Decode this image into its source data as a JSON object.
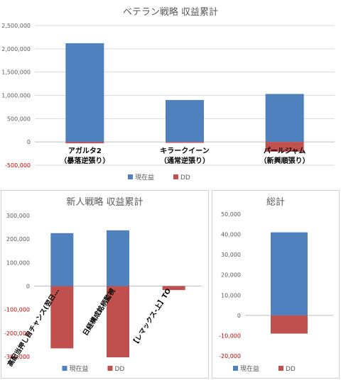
{
  "colors": {
    "profit": "#4e81bd",
    "dd": "#c0504d",
    "negative_tick": "#c00000"
  },
  "legend": {
    "profit": "現在益",
    "dd": "DD"
  },
  "chart_data": [
    {
      "id": "veteran",
      "type": "bar",
      "title": "ベテラン戦略 収益累計",
      "categories": [
        [
          "アガルタ2",
          "（暴落逆張り）"
        ],
        [
          "キラークイーン",
          "（通常逆張り）"
        ],
        [
          "パールジャム",
          "（新興順張り）"
        ]
      ],
      "series": [
        {
          "name": "現在益",
          "values": [
            2120000,
            900000,
            1030000
          ]
        },
        {
          "name": "DD",
          "values": [
            -30000,
            -20000,
            -210000
          ]
        }
      ],
      "ylim": [
        -500000,
        2500000
      ],
      "yticks": [
        -500000,
        0,
        500000,
        1000000,
        1500000,
        2000000,
        2500000
      ],
      "tick_labels": [
        "-500,000",
        "0",
        "500,000",
        "1,000,000",
        "1,500,000",
        "2,000,000",
        "2,500,000"
      ],
      "grid": true,
      "legend_position": "bottom"
    },
    {
      "id": "newcomer",
      "type": "bar",
      "title": "新人戦略 収益累計",
      "categories": [
        "高配当押し目チャンス(翌日…",
        "日経構成銘柄監視",
        "【レマックス-上】TO"
      ],
      "series": [
        {
          "name": "現在益",
          "values": [
            225000,
            237000,
            0
          ]
        },
        {
          "name": "DD",
          "values": [
            -265000,
            -303000,
            -17000
          ]
        }
      ],
      "ylim": [
        -300000,
        300000
      ],
      "yticks": [
        -300000,
        -200000,
        -100000,
        0,
        100000,
        200000,
        300000
      ],
      "tick_labels": [
        "-300,000",
        "-200,000",
        "-100,000",
        "0",
        "100,000",
        "200,000",
        "300,000"
      ],
      "grid": false,
      "legend_position": "bottom"
    },
    {
      "id": "total",
      "type": "bar",
      "title": "総計",
      "categories": [
        ""
      ],
      "series": [
        {
          "name": "現在益",
          "values": [
            41000
          ]
        },
        {
          "name": "DD",
          "values": [
            -9000
          ]
        }
      ],
      "ylim": [
        -20000,
        50000
      ],
      "yticks": [
        -20000,
        -10000,
        0,
        10000,
        20000,
        30000,
        40000,
        50000
      ],
      "tick_labels": [
        "-20,000",
        "-10,000",
        "0",
        "10,000",
        "20,000",
        "30,000",
        "40,000",
        "50,000"
      ],
      "grid": false,
      "legend_position": "bottom"
    }
  ]
}
